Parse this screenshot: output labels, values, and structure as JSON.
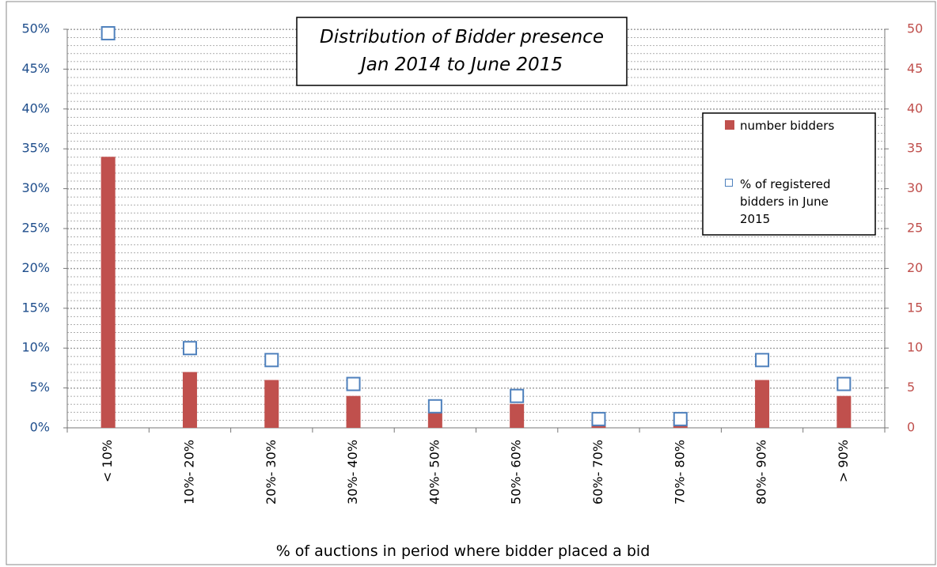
{
  "chart_data": {
    "type": "bar",
    "title": [
      "Distribution of Bidder presence",
      "Jan 2014 to June 2015"
    ],
    "x_label": "% of auctions in period  where bidder placed a bid",
    "categories": [
      "< 10%",
      "10%- 20%",
      "20%- 30%",
      "30%- 40%",
      "40%- 50%",
      "50%- 60%",
      "60%- 70%",
      "70%- 80%",
      "80%- 90%",
      "> 90%"
    ],
    "series": [
      {
        "name": "number bidders",
        "color": "#c0504d",
        "type": "bar",
        "axis": "y2",
        "values": [
          34,
          7,
          6,
          4,
          2,
          3,
          1,
          1,
          6,
          4
        ]
      },
      {
        "name": "% of registered bidders in June 2015",
        "color": "#4f81bd",
        "type": "marker",
        "axis": "y",
        "values": [
          49.5,
          10,
          8.5,
          5.5,
          2.7,
          4,
          1.1,
          1.1,
          8.5,
          5.5
        ]
      }
    ],
    "ylim": [
      0,
      50
    ],
    "yticks": [
      {
        "value": 0,
        "label": "0%"
      },
      {
        "value": 5,
        "label": "5%"
      },
      {
        "value": 10,
        "label": "10%"
      },
      {
        "value": 15,
        "label": "15%"
      },
      {
        "value": 20,
        "label": "20%"
      },
      {
        "value": 25,
        "label": "25%"
      },
      {
        "value": 30,
        "label": "30%"
      },
      {
        "value": 35,
        "label": "35%"
      },
      {
        "value": 40,
        "label": "40%"
      },
      {
        "value": 45,
        "label": "45%"
      },
      {
        "value": 50,
        "label": "50%"
      }
    ],
    "y2lim": [
      0,
      50
    ],
    "y2ticks": [
      0,
      5,
      10,
      15,
      20,
      25,
      30,
      35,
      40,
      45,
      50
    ],
    "grid": true,
    "legend": "upper right"
  }
}
